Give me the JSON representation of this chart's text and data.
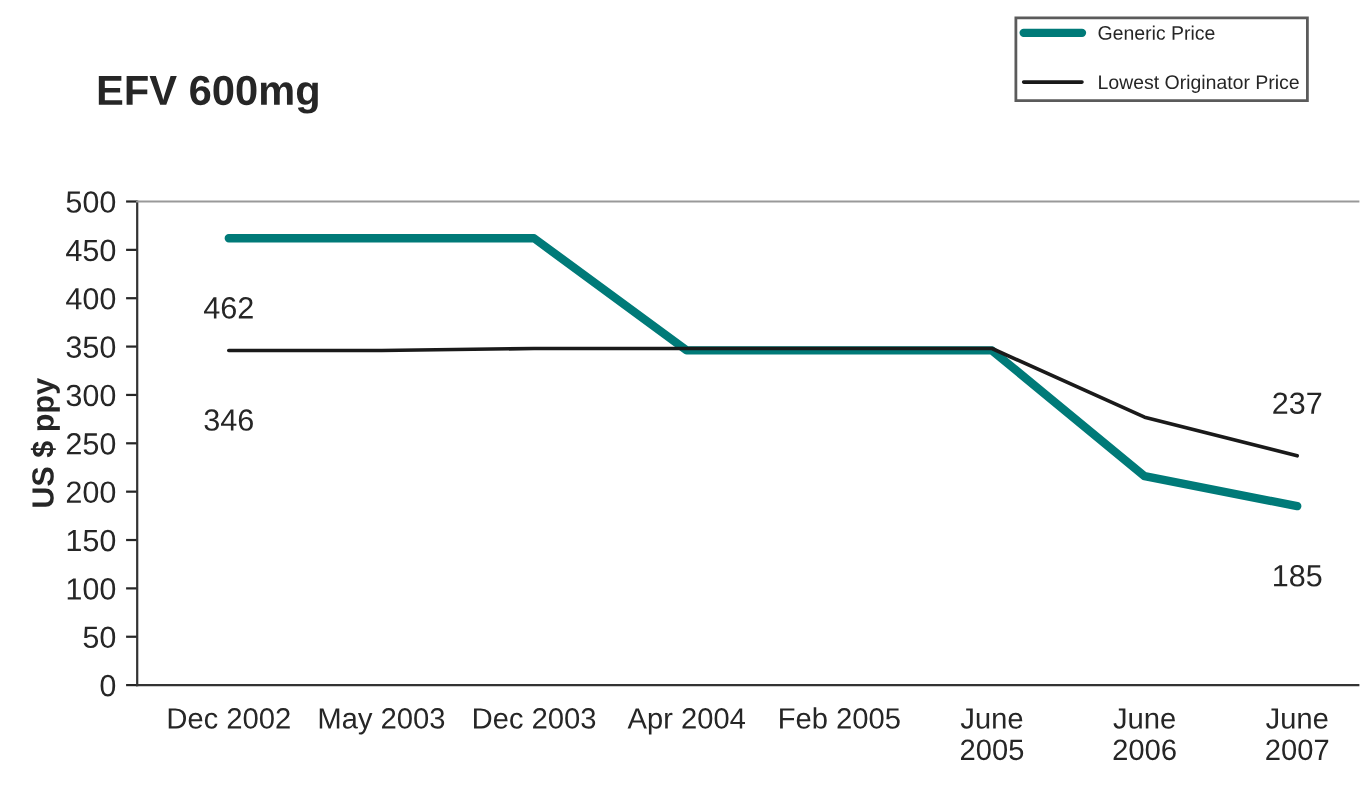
{
  "chart_data": {
    "type": "line",
    "title": "EFV 600mg",
    "ylabel": "US $ ppy",
    "categories": [
      "Dec 2002",
      "May 2003",
      "Dec 2003",
      "Apr 2004",
      "Feb 2005",
      "June\n2005",
      "June\n2006",
      "June\n2007"
    ],
    "series": [
      {
        "name": "Generic Price",
        "color": "#007a78",
        "values": [
          462,
          462,
          462,
          346,
          346,
          346,
          216,
          185
        ],
        "value_labels": [
          "462",
          null,
          null,
          null,
          null,
          null,
          null,
          "185"
        ]
      },
      {
        "name": "Lowest Originator Price",
        "color": "#1a1a1a",
        "values": [
          346,
          346,
          348,
          348,
          348,
          348,
          277,
          237
        ],
        "value_labels": [
          "346",
          null,
          null,
          null,
          null,
          null,
          null,
          "237"
        ]
      }
    ],
    "ylim": [
      0,
      500
    ],
    "yticks": [
      0,
      50,
      100,
      150,
      200,
      250,
      300,
      350,
      400,
      450,
      500
    ],
    "grid": false,
    "legend": "top right",
    "marker": "none",
    "line_style": "solid"
  }
}
